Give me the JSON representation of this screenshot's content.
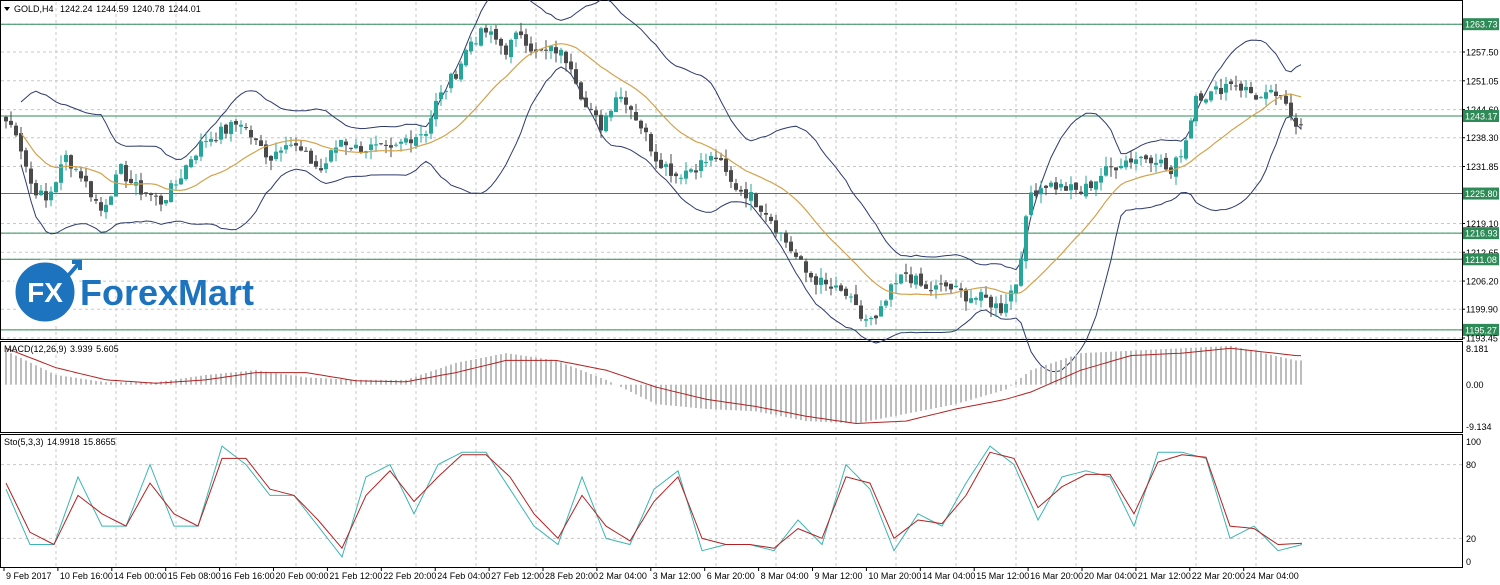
{
  "header": {
    "symbol": "GOLD,H4",
    "open": "1242.24",
    "high": "1244.59",
    "low": "1240.78",
    "close": "1244.01"
  },
  "logo": {
    "fx": "FX",
    "text": "ForexMart"
  },
  "colors": {
    "bull": "#26a69a",
    "bear": "#4a4a4a",
    "ma": "#d4a24c",
    "bands": "#2e3a6e",
    "hline": "#2e8b57",
    "macd_hist": "#bdbdbd",
    "macd_signal": "#b22222",
    "stoch_main": "#3cb4b4",
    "stoch_signal": "#b22222",
    "grid": "#c8c8c8",
    "logo_blue": "#1e73be"
  },
  "chart_data": [
    {
      "type": "candlestick",
      "title": "GOLD,H4",
      "ylim": [
        1193.45,
        1268.7
      ],
      "y_ticks": [
        "1263.73",
        "1257.50",
        "1251.05",
        "1244.60",
        "1243.17",
        "1238.30",
        "1231.85",
        "1225.80",
        "1219.10",
        "1216.93",
        "1212.65",
        "1211.08",
        "1206.20",
        "1199.90",
        "1195.27",
        "1193.45"
      ],
      "x_labels": [
        "9 Feb 2017",
        "10 Feb 16:00",
        "14 Feb 00:00",
        "15 Feb 08:00",
        "16 Feb 16:00",
        "20 Feb 00:00",
        "21 Feb 12:00",
        "22 Feb 20:00",
        "24 Feb 04:00",
        "27 Feb 12:00",
        "28 Feb 20:00",
        "2 Mar 04:00",
        "3 Mar 12:00",
        "6 Mar 20:00",
        "8 Mar 04:00",
        "9 Mar 12:00",
        "10 Mar 20:00",
        "14 Mar 04:00",
        "15 Mar 12:00",
        "16 Mar 20:00",
        "20 Mar 04:00",
        "21 Mar 12:00",
        "22 Mar 20:00",
        "24 Mar 04:00"
      ],
      "horizontal_levels": [
        1263.73,
        1243.17,
        1225.8,
        1216.93,
        1211.08,
        1195.27
      ],
      "indicators": [
        "Bollinger Bands",
        "Moving Average"
      ],
      "close_anchors": [
        [
          0,
          1242
        ],
        [
          2,
          1240
        ],
        [
          5,
          1228
        ],
        [
          8,
          1224
        ],
        [
          12,
          1234
        ],
        [
          15,
          1230
        ],
        [
          19,
          1222
        ],
        [
          23,
          1231
        ],
        [
          26,
          1227
        ],
        [
          28,
          1226
        ],
        [
          31,
          1224
        ],
        [
          34,
          1228
        ],
        [
          37,
          1234
        ],
        [
          40,
          1238
        ],
        [
          44,
          1240
        ],
        [
          47,
          1242
        ],
        [
          50,
          1237
        ],
        [
          53,
          1234
        ],
        [
          56,
          1238
        ],
        [
          59,
          1235
        ],
        [
          63,
          1231
        ],
        [
          67,
          1238
        ],
        [
          70,
          1236
        ],
        [
          73,
          1236
        ],
        [
          77,
          1235
        ],
        [
          80,
          1238
        ],
        [
          84,
          1240
        ],
        [
          86,
          1246
        ],
        [
          90,
          1253
        ],
        [
          93,
          1260
        ],
        [
          96,
          1262
        ],
        [
          100,
          1258
        ],
        [
          103,
          1262
        ],
        [
          106,
          1257
        ],
        [
          110,
          1258
        ],
        [
          113,
          1255
        ],
        [
          116,
          1245
        ],
        [
          119,
          1241
        ],
        [
          122,
          1248
        ],
        [
          124,
          1247
        ],
        [
          127,
          1241
        ],
        [
          130,
          1234
        ],
        [
          134,
          1230
        ],
        [
          138,
          1232
        ],
        [
          142,
          1234
        ],
        [
          145,
          1228
        ],
        [
          148,
          1226
        ],
        [
          152,
          1222
        ],
        [
          156,
          1215
        ],
        [
          160,
          1208
        ],
        [
          164,
          1205
        ],
        [
          168,
          1203
        ],
        [
          171,
          1198
        ],
        [
          174,
          1197
        ],
        [
          177,
          1204
        ],
        [
          180,
          1208
        ],
        [
          184,
          1204
        ],
        [
          188,
          1205
        ],
        [
          192,
          1203
        ],
        [
          196,
          1202
        ],
        [
          199,
          1200
        ],
        [
          202,
          1206
        ],
        [
          205,
          1226
        ],
        [
          208,
          1228
        ],
        [
          212,
          1227
        ],
        [
          215,
          1226
        ],
        [
          219,
          1230
        ],
        [
          223,
          1233
        ],
        [
          227,
          1234
        ],
        [
          230,
          1234
        ],
        [
          233,
          1230
        ],
        [
          236,
          1238
        ],
        [
          238,
          1248
        ],
        [
          241,
          1248
        ],
        [
          245,
          1251
        ],
        [
          248,
          1249
        ],
        [
          251,
          1247
        ],
        [
          254,
          1248
        ],
        [
          256,
          1245
        ],
        [
          258,
          1242
        ]
      ]
    },
    {
      "type": "bar",
      "title": "MACD",
      "params": "(12,26,9)",
      "value_main": "3.939",
      "value_signal": "5.605",
      "ylim": [
        -9.134,
        8.181
      ],
      "y_ticks": [
        "8.181",
        "0.00",
        "-9.134"
      ],
      "hist_anchors": [
        [
          0,
          7
        ],
        [
          10,
          2
        ],
        [
          20,
          0.5
        ],
        [
          30,
          0.5
        ],
        [
          40,
          2
        ],
        [
          50,
          3
        ],
        [
          60,
          1.5
        ],
        [
          70,
          1
        ],
        [
          80,
          1
        ],
        [
          90,
          4.5
        ],
        [
          100,
          6.5
        ],
        [
          110,
          5
        ],
        [
          120,
          1
        ],
        [
          130,
          -4
        ],
        [
          140,
          -5
        ],
        [
          150,
          -5.5
        ],
        [
          160,
          -7.5
        ],
        [
          170,
          -8
        ],
        [
          180,
          -6
        ],
        [
          190,
          -4
        ],
        [
          200,
          -1
        ],
        [
          205,
          3
        ],
        [
          215,
          6.5
        ],
        [
          225,
          7
        ],
        [
          235,
          7.5
        ],
        [
          245,
          8
        ],
        [
          258,
          5
        ]
      ],
      "signal_anchors": [
        [
          0,
          7.5
        ],
        [
          10,
          3.5
        ],
        [
          20,
          1
        ],
        [
          30,
          0.3
        ],
        [
          40,
          1
        ],
        [
          50,
          2.5
        ],
        [
          60,
          2.5
        ],
        [
          70,
          0.8
        ],
        [
          80,
          0.6
        ],
        [
          90,
          2.5
        ],
        [
          100,
          5
        ],
        [
          110,
          5
        ],
        [
          120,
          3
        ],
        [
          130,
          -0.5
        ],
        [
          140,
          -3
        ],
        [
          150,
          -4.5
        ],
        [
          160,
          -6.5
        ],
        [
          170,
          -8
        ],
        [
          180,
          -7.5
        ],
        [
          190,
          -5
        ],
        [
          200,
          -3
        ],
        [
          205,
          -1.5
        ],
        [
          215,
          3
        ],
        [
          225,
          6
        ],
        [
          235,
          6.5
        ],
        [
          245,
          7.5
        ],
        [
          258,
          6
        ]
      ]
    },
    {
      "type": "line",
      "title": "Sto",
      "params": "(5,3,3)",
      "value_main": "14.9918",
      "value_signal": "15.8655",
      "ylim": [
        0,
        100
      ],
      "y_ticks": [
        "100",
        "80",
        "20",
        "0"
      ],
      "main_anchors": [
        [
          0,
          60
        ],
        [
          4,
          15
        ],
        [
          8,
          15
        ],
        [
          12,
          70
        ],
        [
          16,
          30
        ],
        [
          20,
          30
        ],
        [
          24,
          80
        ],
        [
          28,
          30
        ],
        [
          32,
          30
        ],
        [
          36,
          95
        ],
        [
          40,
          80
        ],
        [
          44,
          55
        ],
        [
          48,
          55
        ],
        [
          52,
          30
        ],
        [
          56,
          5
        ],
        [
          60,
          70
        ],
        [
          64,
          80
        ],
        [
          68,
          40
        ],
        [
          72,
          80
        ],
        [
          76,
          90
        ],
        [
          80,
          90
        ],
        [
          84,
          60
        ],
        [
          88,
          30
        ],
        [
          92,
          15
        ],
        [
          96,
          70
        ],
        [
          100,
          20
        ],
        [
          104,
          15
        ],
        [
          108,
          60
        ],
        [
          112,
          75
        ],
        [
          116,
          10
        ],
        [
          120,
          15
        ],
        [
          124,
          15
        ],
        [
          128,
          10
        ],
        [
          132,
          35
        ],
        [
          136,
          15
        ],
        [
          140,
          80
        ],
        [
          144,
          60
        ],
        [
          148,
          10
        ],
        [
          152,
          40
        ],
        [
          156,
          30
        ],
        [
          160,
          65
        ],
        [
          164,
          95
        ],
        [
          168,
          80
        ],
        [
          172,
          35
        ],
        [
          176,
          70
        ],
        [
          180,
          75
        ],
        [
          184,
          70
        ],
        [
          188,
          30
        ],
        [
          192,
          90
        ],
        [
          196,
          90
        ],
        [
          200,
          85
        ],
        [
          204,
          20
        ],
        [
          208,
          30
        ],
        [
          212,
          10
        ],
        [
          216,
          15
        ]
      ],
      "signal_anchors": [
        [
          0,
          65
        ],
        [
          4,
          25
        ],
        [
          8,
          15
        ],
        [
          12,
          55
        ],
        [
          16,
          40
        ],
        [
          20,
          30
        ],
        [
          24,
          65
        ],
        [
          28,
          40
        ],
        [
          32,
          30
        ],
        [
          36,
          85
        ],
        [
          40,
          85
        ],
        [
          44,
          60
        ],
        [
          48,
          55
        ],
        [
          52,
          35
        ],
        [
          56,
          12
        ],
        [
          60,
          55
        ],
        [
          64,
          75
        ],
        [
          68,
          50
        ],
        [
          72,
          70
        ],
        [
          76,
          88
        ],
        [
          80,
          88
        ],
        [
          84,
          70
        ],
        [
          88,
          40
        ],
        [
          92,
          20
        ],
        [
          96,
          55
        ],
        [
          100,
          30
        ],
        [
          104,
          18
        ],
        [
          108,
          50
        ],
        [
          112,
          70
        ],
        [
          116,
          20
        ],
        [
          120,
          15
        ],
        [
          124,
          15
        ],
        [
          128,
          12
        ],
        [
          132,
          28
        ],
        [
          136,
          20
        ],
        [
          140,
          70
        ],
        [
          144,
          65
        ],
        [
          148,
          20
        ],
        [
          152,
          35
        ],
        [
          156,
          32
        ],
        [
          160,
          55
        ],
        [
          164,
          90
        ],
        [
          168,
          85
        ],
        [
          172,
          45
        ],
        [
          176,
          62
        ],
        [
          180,
          72
        ],
        [
          184,
          72
        ],
        [
          188,
          40
        ],
        [
          192,
          82
        ],
        [
          196,
          88
        ],
        [
          200,
          86
        ],
        [
          204,
          30
        ],
        [
          208,
          28
        ],
        [
          212,
          15
        ],
        [
          216,
          16
        ]
      ]
    }
  ]
}
